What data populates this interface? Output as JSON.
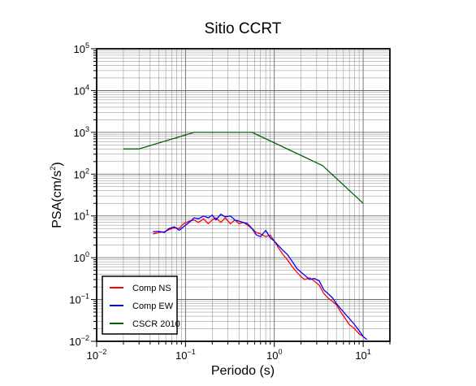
{
  "chart_data": {
    "type": "line",
    "title": "Sitio CCRT",
    "xlabel": "Periodo (s)",
    "ylabel_base": "PSA(cm/s",
    "ylabel_sup": "2",
    "ylabel_tail": ")",
    "x_scale": "log",
    "y_scale": "log",
    "xlim": [
      0.01,
      20
    ],
    "ylim": [
      0.01,
      100000
    ],
    "grid": true,
    "legend_position": "bottom-left",
    "x_ticks": [
      {
        "base": "10",
        "exp": "−2"
      },
      {
        "base": "10",
        "exp": "−1"
      },
      {
        "base": "10",
        "exp": "0"
      },
      {
        "base": "10",
        "exp": "1"
      }
    ],
    "y_ticks": [
      {
        "base": "10",
        "exp": "−2"
      },
      {
        "base": "10",
        "exp": "−1"
      },
      {
        "base": "10",
        "exp": "0"
      },
      {
        "base": "10",
        "exp": "1"
      },
      {
        "base": "10",
        "exp": "2"
      },
      {
        "base": "10",
        "exp": "3"
      },
      {
        "base": "10",
        "exp": "4"
      },
      {
        "base": "10",
        "exp": "5"
      }
    ],
    "series": [
      {
        "name": "Comp NS",
        "color": "#ff0000",
        "x": [
          0.043,
          0.05,
          0.058,
          0.065,
          0.075,
          0.085,
          0.095,
          0.11,
          0.125,
          0.14,
          0.16,
          0.18,
          0.2,
          0.22,
          0.25,
          0.28,
          0.32,
          0.36,
          0.4,
          0.45,
          0.5,
          0.56,
          0.63,
          0.7,
          0.8,
          0.9,
          1.0,
          1.1,
          1.25,
          1.4,
          1.6,
          1.8,
          2.0,
          2.2,
          2.5,
          2.8,
          3.2,
          3.6,
          4.0,
          4.5,
          5.0,
          5.6,
          6.3,
          7.0,
          8.0,
          9.0,
          10.0
        ],
        "y": [
          3.7,
          4.0,
          4.2,
          4.7,
          5.2,
          5.0,
          6.5,
          7.5,
          8.0,
          7.0,
          8.5,
          6.5,
          8.0,
          9.0,
          7.0,
          9.0,
          6.5,
          8.0,
          6.5,
          7.0,
          6.0,
          5.0,
          4.0,
          3.7,
          3.2,
          3.5,
          2.5,
          1.8,
          1.2,
          0.9,
          0.6,
          0.45,
          0.35,
          0.3,
          0.33,
          0.28,
          0.22,
          0.14,
          0.11,
          0.09,
          0.075,
          0.05,
          0.035,
          0.025,
          0.02,
          0.015,
          0.013
        ]
      },
      {
        "name": "Comp EW",
        "color": "#0000ff",
        "x": [
          0.043,
          0.05,
          0.058,
          0.065,
          0.075,
          0.085,
          0.095,
          0.11,
          0.125,
          0.14,
          0.16,
          0.18,
          0.2,
          0.22,
          0.25,
          0.28,
          0.32,
          0.36,
          0.4,
          0.45,
          0.5,
          0.56,
          0.63,
          0.7,
          0.8,
          0.9,
          1.0,
          1.1,
          1.25,
          1.4,
          1.6,
          1.8,
          2.0,
          2.2,
          2.5,
          2.8,
          3.2,
          3.6,
          4.0,
          4.5,
          5.0,
          5.6,
          6.3,
          7.0,
          8.0,
          9.0,
          10.0,
          11.0
        ],
        "y": [
          4.2,
          4.3,
          4.0,
          5.0,
          5.5,
          4.5,
          5.5,
          7.0,
          9.0,
          8.5,
          10.0,
          9.0,
          10.5,
          8.0,
          11.0,
          9.5,
          10.0,
          8.0,
          7.5,
          7.0,
          6.5,
          5.0,
          3.5,
          3.2,
          4.5,
          3.0,
          2.5,
          2.0,
          1.5,
          1.2,
          0.8,
          0.55,
          0.45,
          0.38,
          0.3,
          0.32,
          0.28,
          0.17,
          0.14,
          0.11,
          0.08,
          0.06,
          0.045,
          0.035,
          0.025,
          0.018,
          0.013,
          0.011
        ]
      },
      {
        "name": "CSCR 2010",
        "color": "#006400",
        "x": [
          0.02,
          0.03,
          0.125,
          0.5625,
          3.5,
          10.0
        ],
        "y": [
          400,
          400,
          1000,
          1000,
          160,
          20
        ]
      }
    ]
  }
}
